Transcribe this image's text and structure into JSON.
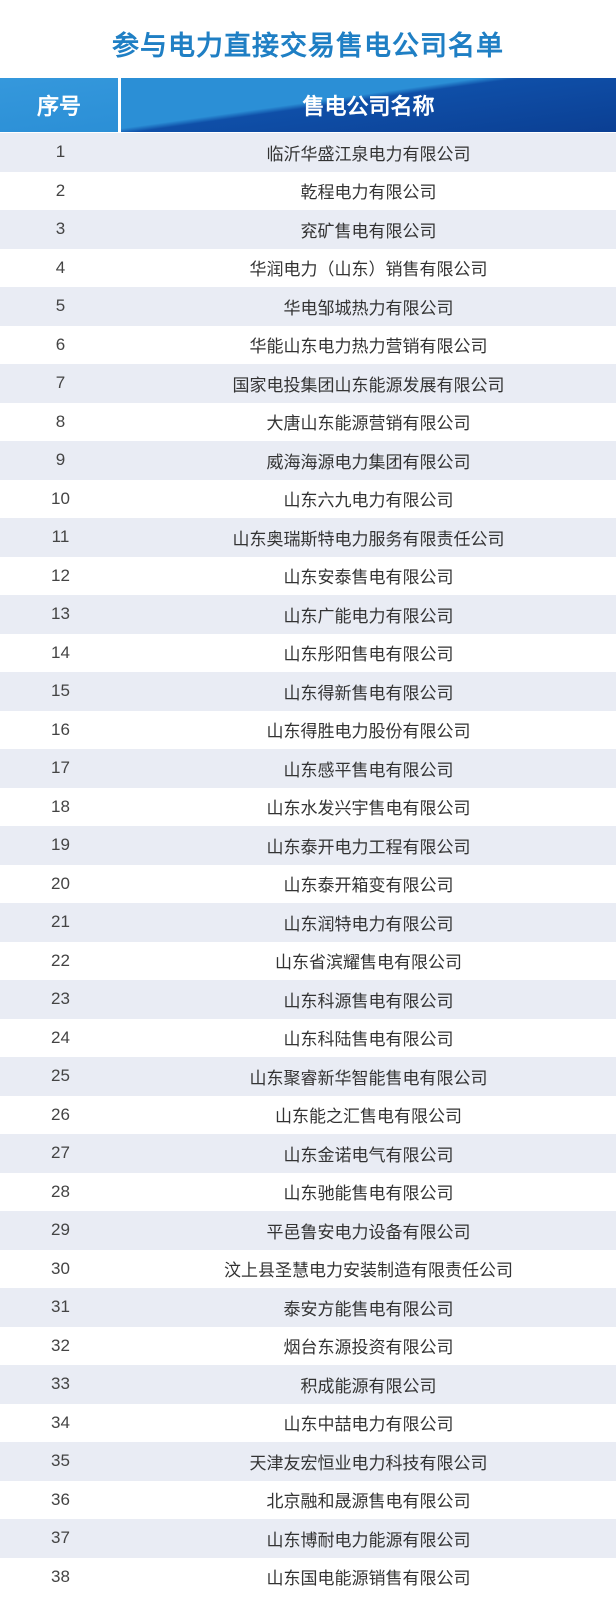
{
  "title": "参与电力直接交易售电公司名单",
  "table": {
    "headers": [
      "序号",
      "售电公司名称"
    ],
    "rows": [
      [
        "1",
        "临沂华盛江泉电力有限公司"
      ],
      [
        "2",
        "乾程电力有限公司"
      ],
      [
        "3",
        "兖矿售电有限公司"
      ],
      [
        "4",
        "华润电力（山东）销售有限公司"
      ],
      [
        "5",
        "华电邹城热力有限公司"
      ],
      [
        "6",
        "华能山东电力热力营销有限公司"
      ],
      [
        "7",
        "国家电投集团山东能源发展有限公司"
      ],
      [
        "8",
        "大唐山东能源营销有限公司"
      ],
      [
        "9",
        "威海海源电力集团有限公司"
      ],
      [
        "10",
        "山东六九电力有限公司"
      ],
      [
        "11",
        "山东奥瑞斯特电力服务有限责任公司"
      ],
      [
        "12",
        "山东安泰售电有限公司"
      ],
      [
        "13",
        "山东广能电力有限公司"
      ],
      [
        "14",
        "山东彤阳售电有限公司"
      ],
      [
        "15",
        "山东得新售电有限公司"
      ],
      [
        "16",
        "山东得胜电力股份有限公司"
      ],
      [
        "17",
        "山东感平售电有限公司"
      ],
      [
        "18",
        "山东水发兴宇售电有限公司"
      ],
      [
        "19",
        "山东泰开电力工程有限公司"
      ],
      [
        "20",
        "山东泰开箱变有限公司"
      ],
      [
        "21",
        "山东润特电力有限公司"
      ],
      [
        "22",
        "山东省滨耀售电有限公司"
      ],
      [
        "23",
        "山东科源售电有限公司"
      ],
      [
        "24",
        "山东科陆售电有限公司"
      ],
      [
        "25",
        "山东聚睿新华智能售电有限公司"
      ],
      [
        "26",
        "山东能之汇售电有限公司"
      ],
      [
        "27",
        "山东金诺电气有限公司"
      ],
      [
        "28",
        "山东驰能售电有限公司"
      ],
      [
        "29",
        "平邑鲁安电力设备有限公司"
      ],
      [
        "30",
        "汶上县圣慧电力安装制造有限责任公司"
      ],
      [
        "31",
        "泰安方能售电有限公司"
      ],
      [
        "32",
        "烟台东源投资有限公司"
      ],
      [
        "33",
        "积成能源有限公司"
      ],
      [
        "34",
        "山东中喆电力有限公司"
      ],
      [
        "35",
        "天津友宏恒业电力科技有限公司"
      ],
      [
        "36",
        "北京融和晟源售电有限公司"
      ],
      [
        "37",
        "山东博耐电力能源有限公司"
      ],
      [
        "38",
        "山东国电能源销售有限公司"
      ]
    ]
  },
  "colors": {
    "title": "#1f7fc4",
    "header_light": "#2b8fd6",
    "header_dark": "#0b3f93",
    "row_alt": "#e9ecf4"
  }
}
